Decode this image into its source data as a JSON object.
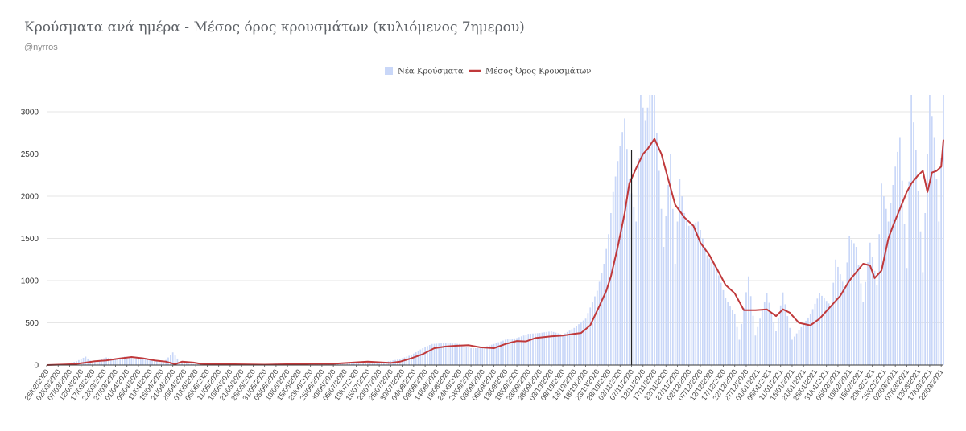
{
  "title": "Κρούσματα ανά ημέρα - Μέσος όρος κρουσμάτων (κυλιόμενος 7ημερου)",
  "subtitle": "@nyrros",
  "colors": {
    "bars": "#c9d7f8",
    "line": "#c0393b",
    "marker": "#222222",
    "grid": "#e6e6e6"
  },
  "chart_data": {
    "type": "bar",
    "title": "Κρούσματα ανά ημέρα - Μέσος όρος κρουσμάτων (κυλιόμενος 7ημερου)",
    "subtitle": "@nyrros",
    "xlabel": "",
    "ylabel": "",
    "ylim": [
      0,
      3200
    ],
    "yticks": [
      0,
      500,
      1000,
      1500,
      2000,
      2500,
      3000
    ],
    "grid": true,
    "legend_position": "top-center",
    "x_range": [
      "26/02/2020",
      "23/03/2021"
    ],
    "x_tick_step_days": 5,
    "x_tick_labels": [
      "26/02/2020",
      "02/03/2020",
      "07/03/2020",
      "12/03/2020",
      "17/03/2020",
      "22/03/2020",
      "27/03/2020",
      "01/04/2020",
      "06/04/2020",
      "11/04/2020",
      "16/04/2020",
      "21/04/2020",
      "26/04/2020",
      "01/05/2020",
      "06/05/2020",
      "11/05/2020",
      "16/05/2020",
      "21/05/2020",
      "26/05/2020",
      "31/05/2020",
      "05/06/2020",
      "10/06/2020",
      "15/06/2020",
      "20/06/2020",
      "25/06/2020",
      "30/06/2020",
      "05/07/2020",
      "10/07/2020",
      "15/07/2020",
      "20/07/2020",
      "25/07/2020",
      "30/07/2020",
      "04/08/2020",
      "09/08/2020",
      "14/08/2020",
      "19/08/2020",
      "24/08/2020",
      "29/08/2020",
      "03/09/2020",
      "08/09/2020",
      "13/09/2020",
      "18/09/2020",
      "23/09/2020",
      "28/09/2020",
      "03/10/2020",
      "08/10/2020",
      "13/10/2020",
      "18/10/2020",
      "23/10/2020",
      "28/10/2020",
      "02/11/2020",
      "07/11/2020",
      "12/11/2020",
      "17/11/2020",
      "22/11/2020",
      "27/11/2020",
      "02/12/2020",
      "07/12/2020",
      "12/12/2020",
      "17/12/2020",
      "22/12/2020",
      "27/12/2020",
      "01/01/2021",
      "06/01/2021",
      "11/01/2021",
      "16/01/2021",
      "21/01/2021",
      "26/01/2021",
      "31/01/2021",
      "05/02/2021",
      "10/02/2021",
      "15/02/2021",
      "20/02/2021",
      "25/02/2021",
      "02/03/2021",
      "07/03/2021",
      "12/03/2021",
      "17/03/2021",
      "22/03/2021"
    ],
    "vertical_marker_date": "07/11/2020",
    "series": [
      {
        "name": "Νέα Κρούσματα",
        "type": "bar",
        "points": [
          [
            "26/02/2020",
            1
          ],
          [
            "05/03/2020",
            10
          ],
          [
            "10/03/2020",
            45
          ],
          [
            "14/03/2020",
            100
          ],
          [
            "17/03/2020",
            30
          ],
          [
            "20/03/2020",
            60
          ],
          [
            "23/03/2020",
            90
          ],
          [
            "27/03/2020",
            70
          ],
          [
            "31/03/2020",
            100
          ],
          [
            "03/04/2020",
            85
          ],
          [
            "08/04/2020",
            70
          ],
          [
            "13/04/2020",
            50
          ],
          [
            "17/04/2020",
            30
          ],
          [
            "21/04/2020",
            150
          ],
          [
            "24/04/2020",
            40
          ],
          [
            "28/04/2020",
            15
          ],
          [
            "03/05/2020",
            10
          ],
          [
            "15/05/2020",
            12
          ],
          [
            "31/05/2020",
            10
          ],
          [
            "10/06/2020",
            25
          ],
          [
            "20/06/2020",
            15
          ],
          [
            "30/06/2020",
            20
          ],
          [
            "10/07/2020",
            30
          ],
          [
            "20/07/2020",
            25
          ],
          [
            "29/07/2020",
            70
          ],
          [
            "03/08/2020",
            120
          ],
          [
            "08/08/2020",
            200
          ],
          [
            "12/08/2020",
            250
          ],
          [
            "18/08/2020",
            260
          ],
          [
            "24/08/2020",
            250
          ],
          [
            "29/08/2020",
            200
          ],
          [
            "02/09/2020",
            200
          ],
          [
            "08/09/2020",
            250
          ],
          [
            "13/09/2020",
            300
          ],
          [
            "18/09/2020",
            320
          ],
          [
            "23/09/2020",
            370
          ],
          [
            "28/09/2020",
            380
          ],
          [
            "03/10/2020",
            400
          ],
          [
            "08/10/2020",
            360
          ],
          [
            "13/10/2020",
            440
          ],
          [
            "18/10/2020",
            550
          ],
          [
            "23/10/2020",
            880
          ],
          [
            "26/10/2020",
            1200
          ],
          [
            "28/10/2020",
            1550
          ],
          [
            "30/10/2020",
            2050
          ],
          [
            "02/11/2020",
            2600
          ],
          [
            "04/11/2020",
            2920
          ],
          [
            "06/11/2020",
            2200
          ],
          [
            "09/11/2020",
            1700
          ],
          [
            "11/11/2020",
            3200
          ],
          [
            "13/11/2020",
            2900
          ],
          [
            "15/11/2020",
            3200
          ],
          [
            "17/11/2020",
            3200
          ],
          [
            "19/11/2020",
            2300
          ],
          [
            "21/11/2020",
            1400
          ],
          [
            "24/11/2020",
            2500
          ],
          [
            "26/11/2020",
            1200
          ],
          [
            "28/11/2020",
            2200
          ],
          [
            "30/11/2020",
            1800
          ],
          [
            "02/12/2020",
            1650
          ],
          [
            "06/12/2020",
            1700
          ],
          [
            "10/12/2020",
            1300
          ],
          [
            "14/12/2020",
            1150
          ],
          [
            "18/12/2020",
            800
          ],
          [
            "22/12/2020",
            600
          ],
          [
            "24/12/2020",
            300
          ],
          [
            "28/12/2020",
            1050
          ],
          [
            "31/12/2020",
            350
          ],
          [
            "05/01/2021",
            850
          ],
          [
            "09/01/2021",
            400
          ],
          [
            "12/01/2021",
            860
          ],
          [
            "16/01/2021",
            300
          ],
          [
            "20/01/2021",
            450
          ],
          [
            "24/01/2021",
            600
          ],
          [
            "28/01/2021",
            850
          ],
          [
            "02/02/2021",
            700
          ],
          [
            "04/02/2021",
            1250
          ],
          [
            "08/02/2021",
            900
          ],
          [
            "10/02/2021",
            1530
          ],
          [
            "13/02/2021",
            1400
          ],
          [
            "16/02/2021",
            750
          ],
          [
            "19/02/2021",
            1450
          ],
          [
            "22/02/2021",
            950
          ],
          [
            "24/02/2021",
            2150
          ],
          [
            "27/02/2021",
            1700
          ],
          [
            "02/03/2021",
            2350
          ],
          [
            "04/03/2021",
            2700
          ],
          [
            "07/03/2021",
            1150
          ],
          [
            "09/03/2021",
            3200
          ],
          [
            "11/03/2021",
            2550
          ],
          [
            "14/03/2021",
            1100
          ],
          [
            "17/03/2021",
            3200
          ],
          [
            "19/03/2021",
            2700
          ],
          [
            "21/03/2021",
            1700
          ],
          [
            "23/03/2021",
            3200
          ]
        ]
      },
      {
        "name": "Μέσος Όρος Κρουσμάτων",
        "type": "line",
        "points": [
          [
            "26/02/2020",
            0
          ],
          [
            "09/03/2020",
            10
          ],
          [
            "13/03/2020",
            25
          ],
          [
            "18/03/2020",
            45
          ],
          [
            "23/03/2020",
            55
          ],
          [
            "28/03/2020",
            75
          ],
          [
            "03/04/2020",
            95
          ],
          [
            "08/04/2020",
            80
          ],
          [
            "13/04/2020",
            55
          ],
          [
            "18/04/2020",
            40
          ],
          [
            "22/04/2020",
            10
          ],
          [
            "25/04/2020",
            40
          ],
          [
            "30/04/2020",
            30
          ],
          [
            "03/05/2020",
            15
          ],
          [
            "31/05/2020",
            5
          ],
          [
            "20/06/2020",
            15
          ],
          [
            "30/06/2020",
            15
          ],
          [
            "15/07/2020",
            40
          ],
          [
            "25/07/2020",
            25
          ],
          [
            "29/07/2020",
            40
          ],
          [
            "03/08/2020",
            80
          ],
          [
            "08/08/2020",
            130
          ],
          [
            "13/08/2020",
            200
          ],
          [
            "18/08/2020",
            220
          ],
          [
            "23/08/2020",
            230
          ],
          [
            "28/08/2020",
            235
          ],
          [
            "02/09/2020",
            210
          ],
          [
            "08/09/2020",
            200
          ],
          [
            "13/09/2020",
            250
          ],
          [
            "18/09/2020",
            285
          ],
          [
            "22/09/2020",
            280
          ],
          [
            "26/09/2020",
            320
          ],
          [
            "03/10/2020",
            340
          ],
          [
            "08/10/2020",
            350
          ],
          [
            "13/10/2020",
            370
          ],
          [
            "16/10/2020",
            380
          ],
          [
            "20/10/2020",
            470
          ],
          [
            "24/10/2020",
            700
          ],
          [
            "27/10/2020",
            880
          ],
          [
            "29/10/2020",
            1050
          ],
          [
            "01/11/2020",
            1400
          ],
          [
            "04/11/2020",
            1800
          ],
          [
            "06/11/2020",
            2150
          ],
          [
            "09/11/2020",
            2330
          ],
          [
            "12/11/2020",
            2500
          ],
          [
            "14/11/2020",
            2560
          ],
          [
            "17/11/2020",
            2680
          ],
          [
            "20/11/2020",
            2500
          ],
          [
            "23/11/2020",
            2200
          ],
          [
            "26/11/2020",
            1900
          ],
          [
            "30/11/2020",
            1750
          ],
          [
            "04/12/2020",
            1650
          ],
          [
            "07/12/2020",
            1450
          ],
          [
            "11/12/2020",
            1300
          ],
          [
            "15/12/2020",
            1100
          ],
          [
            "18/12/2020",
            950
          ],
          [
            "22/12/2020",
            850
          ],
          [
            "26/12/2020",
            650
          ],
          [
            "31/12/2020",
            650
          ],
          [
            "05/01/2021",
            660
          ],
          [
            "09/01/2021",
            580
          ],
          [
            "12/01/2021",
            660
          ],
          [
            "15/01/2021",
            620
          ],
          [
            "19/01/2021",
            500
          ],
          [
            "24/01/2021",
            470
          ],
          [
            "28/01/2021",
            550
          ],
          [
            "02/02/2021",
            700
          ],
          [
            "06/02/2021",
            820
          ],
          [
            "10/02/2021",
            1000
          ],
          [
            "13/02/2021",
            1100
          ],
          [
            "16/02/2021",
            1200
          ],
          [
            "19/02/2021",
            1180
          ],
          [
            "21/02/2021",
            1030
          ],
          [
            "24/02/2021",
            1120
          ],
          [
            "27/02/2021",
            1500
          ],
          [
            "01/03/2021",
            1650
          ],
          [
            "04/03/2021",
            1850
          ],
          [
            "07/03/2021",
            2050
          ],
          [
            "09/03/2021",
            2150
          ],
          [
            "12/03/2021",
            2250
          ],
          [
            "14/03/2021",
            2300
          ],
          [
            "16/03/2021",
            2050
          ],
          [
            "18/03/2021",
            2280
          ],
          [
            "20/03/2021",
            2300
          ],
          [
            "22/03/2021",
            2350
          ],
          [
            "23/03/2021",
            2670
          ]
        ]
      }
    ]
  }
}
